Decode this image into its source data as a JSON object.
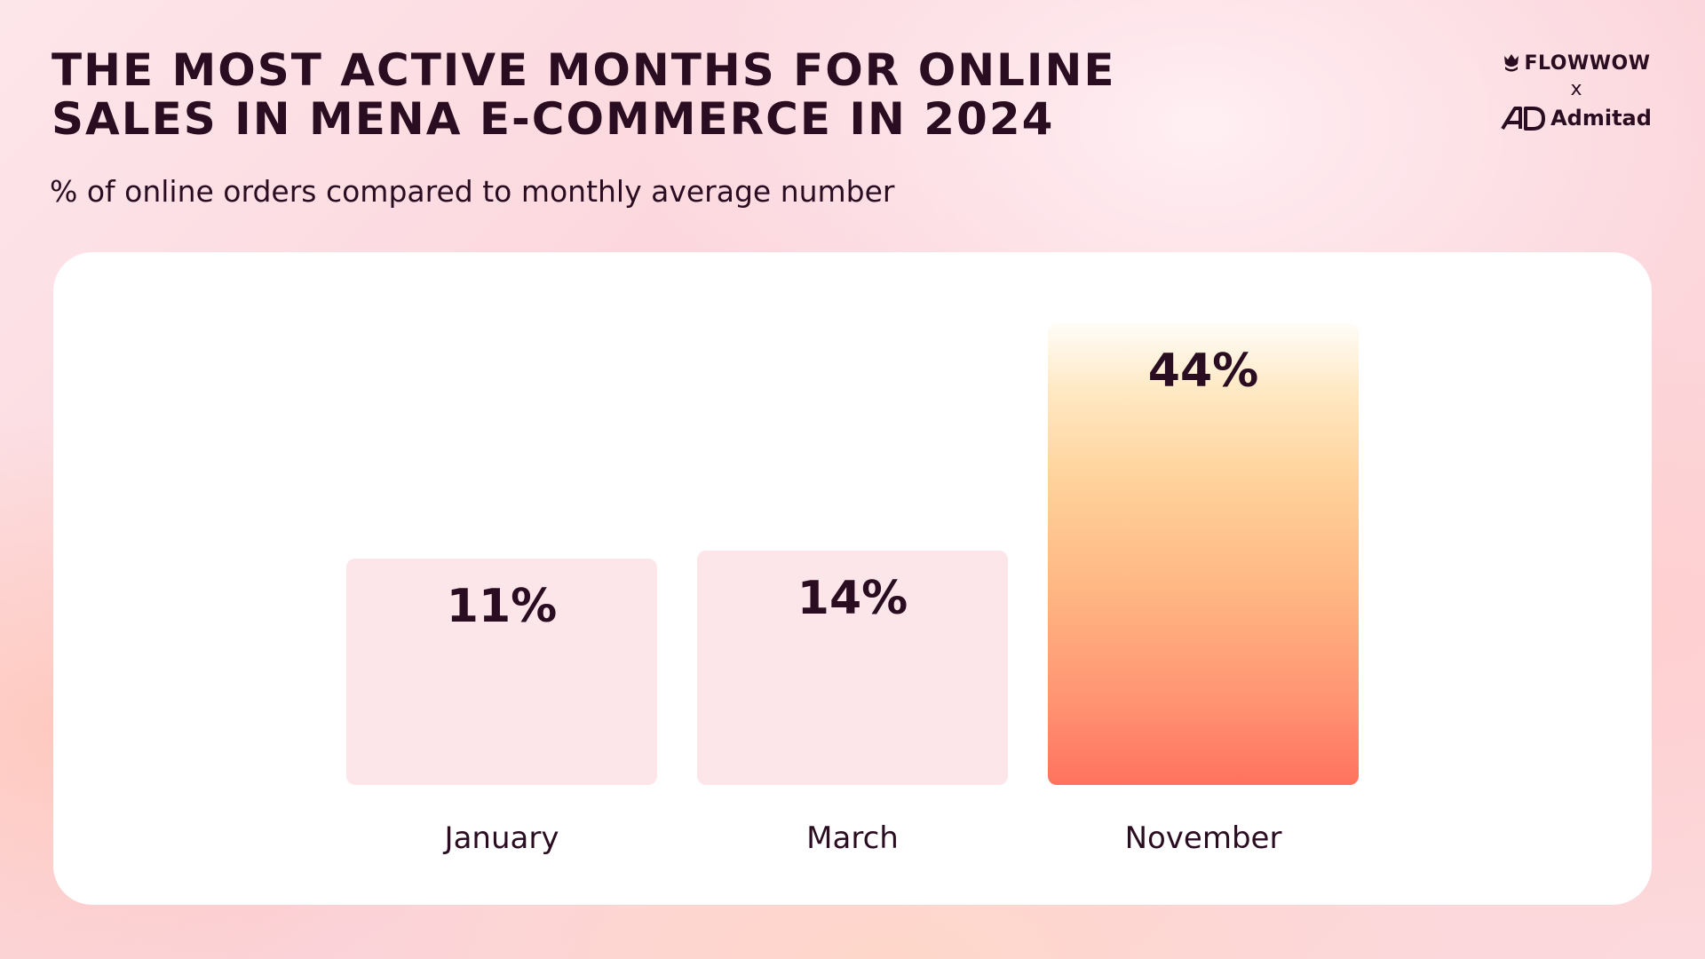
{
  "header": {
    "title_lines": [
      "THE MOST ACTIVE MONTHS FOR ONLINE",
      "SALES IN MENA E-COMMERCE IN 2024"
    ],
    "subtitle": "% of online orders compared to monthly average number"
  },
  "logos": {
    "brand1": "FLOWWOW",
    "separator": "x",
    "brand2": "Admitad",
    "brand1_icon": "tulip-icon",
    "brand2_icon": "admitad-ad-icon"
  },
  "colors": {
    "text": "#2a0d20",
    "bar_default": "#fde6ea",
    "bar_highlight_top": "#fffdf8",
    "bar_highlight_bottom": "#ff725e"
  },
  "chart_data": {
    "type": "bar",
    "categories": [
      "January",
      "March",
      "November"
    ],
    "values": [
      11,
      14,
      44
    ],
    "data_labels": [
      "11%",
      "14%",
      "44%"
    ],
    "highlight_index": 2,
    "title": "THE MOST ACTIVE MONTHS FOR ONLINE SALES IN MENA E-COMMERCE IN 2024",
    "subtitle": "% of online orders compared to monthly average number",
    "xlabel": "",
    "ylabel": "",
    "grid": false
  }
}
